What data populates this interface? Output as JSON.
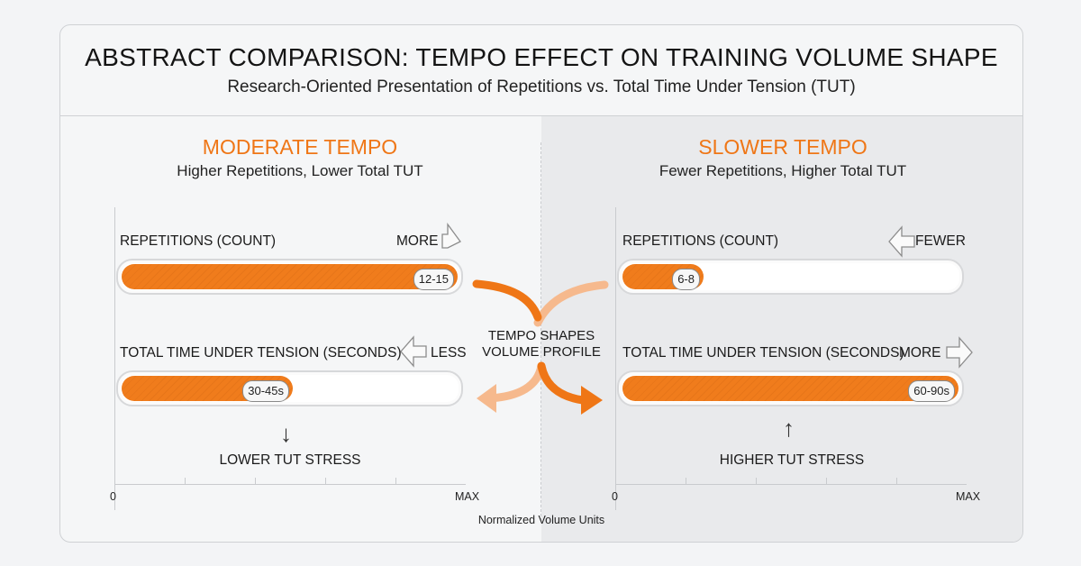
{
  "header": {
    "title": "ABSTRACT COMPARISON: TEMPO EFFECT ON TRAINING VOLUME SHAPE",
    "subtitle": "Research-Oriented Presentation of Repetitions vs. Total Time Under Tension (TUT)"
  },
  "colors": {
    "accent": "#ef7616",
    "fill": "#f07c1c",
    "light_accent": "#f6b98d"
  },
  "center_label": {
    "line1": "TEMPO SHAPES",
    "line2": "VOLUME PROFILE"
  },
  "x_axis": {
    "min_label": "0",
    "max_label": "MAX",
    "label": "Normalized Volume Units"
  },
  "panels": [
    {
      "title": "MODERATE TEMPO",
      "subtitle": "Higher Repetitions, Lower Total TUT",
      "reps": {
        "label": "REPETITIONS (COUNT)",
        "direction": "MORE",
        "value_label": "12-15",
        "level": 1.0
      },
      "tut": {
        "label": "TOTAL TIME UNDER TENSION (SECONDS)",
        "direction": "LESS",
        "value_label": "30-45s",
        "level": 0.51
      },
      "stress": "LOWER TUT STRESS",
      "stress_icon": "arrow-down-icon"
    },
    {
      "title": "SLOWER TEMPO",
      "subtitle": "Fewer Repetitions, Higher Total TUT",
      "reps": {
        "label": "REPETITIONS (COUNT)",
        "direction": "FEWER",
        "value_label": "6-8",
        "level": 0.24
      },
      "tut": {
        "label": "TOTAL TIME UNDER TENSION (SECONDS)",
        "direction": "MORE",
        "value_label": "60-90s",
        "level": 1.0
      },
      "stress": "HIGHER TUT STRESS",
      "stress_icon": "arrow-up-icon"
    }
  ]
}
